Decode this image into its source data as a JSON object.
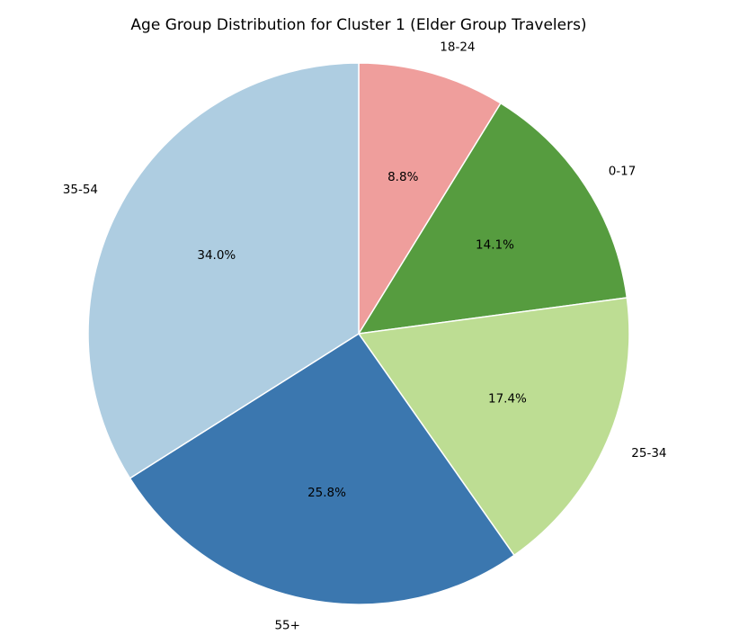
{
  "chart_data": {
    "type": "pie",
    "title": "Age Group Distribution for Cluster 1 (Elder Group Travelers)",
    "start_angle_deg": 90,
    "direction": "clockwise",
    "slices": [
      {
        "label": "18-24",
        "value": 8.8,
        "pct_label": "8.8%",
        "color": "#ef9e9c"
      },
      {
        "label": "0-17",
        "value": 14.1,
        "pct_label": "14.1%",
        "color": "#569c3f"
      },
      {
        "label": "25-34",
        "value": 17.4,
        "pct_label": "17.4%",
        "color": "#bddd93"
      },
      {
        "label": "55+",
        "value": 25.8,
        "pct_label": "25.8%",
        "color": "#3b77af"
      },
      {
        "label": "35-54",
        "value": 34.0,
        "pct_label": "34.0%",
        "color": "#aecde1"
      }
    ]
  }
}
